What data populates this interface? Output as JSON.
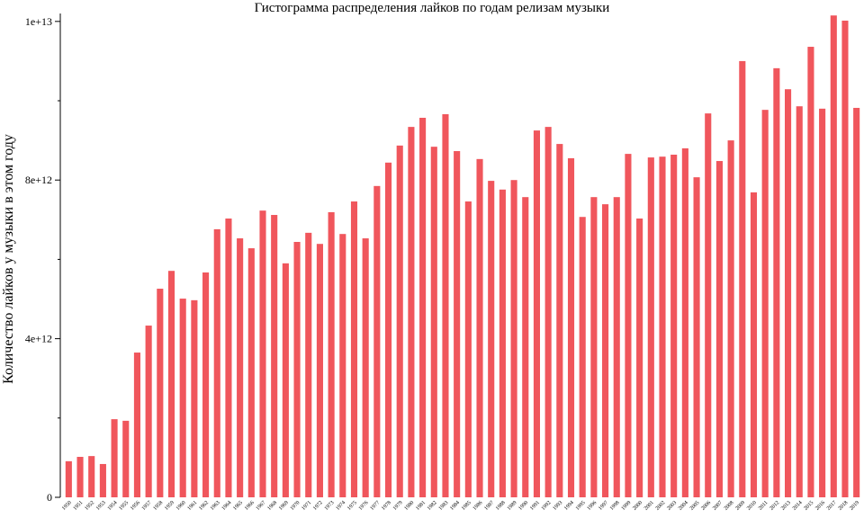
{
  "chart_data": {
    "type": "bar",
    "title": "Гистограмма распределения лайков по годам релизам музыки",
    "y_label": "Количество лайков у музыки в этом году",
    "color": "#f0565c",
    "categories": [
      "1950",
      "1951",
      "1952",
      "1953",
      "1954",
      "1955",
      "1956",
      "1957",
      "1958",
      "1959",
      "1960",
      "1961",
      "1962",
      "1963",
      "1964",
      "1965",
      "1966",
      "1967",
      "1968",
      "1969",
      "1970",
      "1971",
      "1972",
      "1973",
      "1974",
      "1975",
      "1976",
      "1977",
      "1978",
      "1979",
      "1980",
      "1981",
      "1982",
      "1983",
      "1984",
      "1985",
      "1986",
      "1987",
      "1988",
      "1989",
      "1990",
      "1991",
      "1992",
      "1993",
      "1994",
      "1995",
      "1996",
      "1997",
      "1998",
      "1999",
      "2000",
      "2001",
      "2002",
      "2003",
      "2004",
      "2005",
      "2006",
      "2007",
      "2008",
      "2009",
      "2010",
      "2011",
      "2012",
      "2013",
      "2014",
      "2015",
      "2016",
      "2017",
      "2018",
      "2019"
    ],
    "values": [
      910000000000.0,
      1020000000000.0,
      1040000000000.0,
      840000000000.0,
      1970000000000.0,
      1930000000000.0,
      3650000000000.0,
      4330000000000.0,
      5260000000000.0,
      5710000000000.0,
      5010000000000.0,
      4970000000000.0,
      5670000000000.0,
      6760000000000.0,
      7030000000000.0,
      6530000000000.0,
      6280000000000.0,
      7230000000000.0,
      7120000000000.0,
      5900000000000.0,
      6440000000000.0,
      6670000000000.0,
      6390000000000.0,
      7190000000000.0,
      6640000000000.0,
      7460000000000.0,
      6530000000000.0,
      7850000000000.0,
      8440000000000.0,
      8870000000000.0,
      9340000000000.0,
      9570000000000.0,
      8840000000000.0,
      9660000000000.0,
      8730000000000.0,
      7460000000000.0,
      8530000000000.0,
      7980000000000.0,
      7760000000000.0,
      8000000000000.0,
      7570000000000.0,
      9250000000000.0,
      9340000000000.0,
      8910000000000.0,
      8550000000000.0,
      7070000000000.0,
      7570000000000.0,
      7390000000000.0,
      7570000000000.0,
      8660000000000.0,
      7030000000000.0,
      8570000000000.0,
      8590000000000.0,
      8640000000000.0,
      8800000000000.0,
      8070000000000.0,
      9680000000000.0,
      8480000000000.0,
      9000000000000.0,
      11000000000000.0,
      7690000000000.0,
      9770000000000.0,
      10820000000000.0,
      10290000000000.0,
      9860000000000.0,
      11360000000000.0,
      9800000000000.0,
      12150000000000.0,
      12020000000000.0,
      9820000000000.0
    ],
    "ylim": [
      0,
      12200000000000.0
    ],
    "yticks": [
      0,
      {
        "value": 4000000000000.0,
        "label": "4e+12"
      },
      {
        "value": 8000000000000.0,
        "label": "8e+12"
      },
      {
        "value": 12000000000000.0,
        "label": "1e+13"
      }
    ],
    "yminorticks": [
      2000000000000.0,
      6000000000000.0,
      10000000000000.0
    ]
  }
}
